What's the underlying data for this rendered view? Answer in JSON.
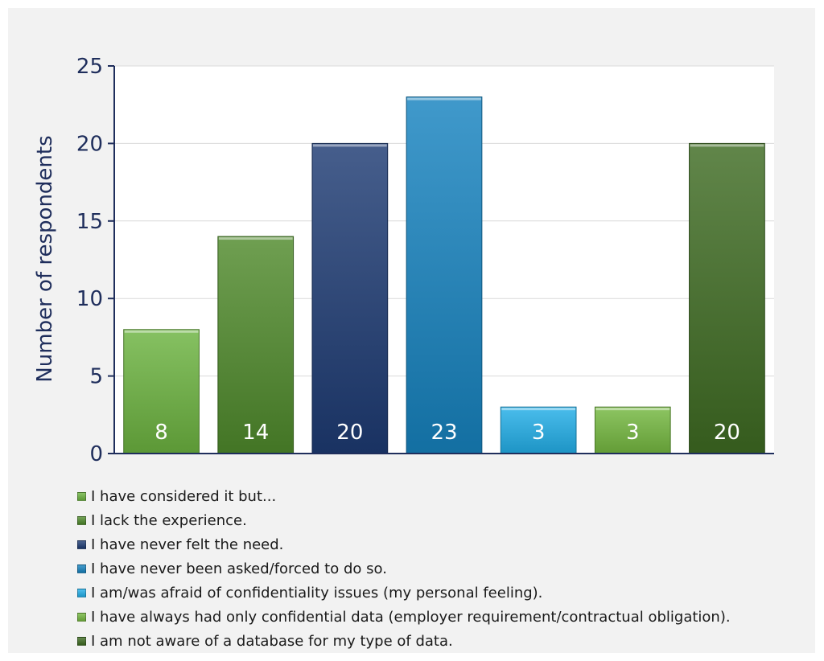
{
  "chart_data": {
    "type": "bar",
    "ylabel": "Number of respondents",
    "ylim": [
      0,
      25
    ],
    "yticks": [
      0,
      5,
      10,
      15,
      20,
      25
    ],
    "grid": true,
    "legend_position": "bottom",
    "categories": [
      "I have considered it but...",
      "I lack the experience.",
      "I have never felt the need.",
      "I have never been asked/forced to do so.",
      "I am/was afraid of confidentiality issues (my personal feeling).",
      "I have always had only confidential data (employer requirement/contractual obligation).",
      "I am not aware of a database for my type of data."
    ],
    "values": [
      8,
      14,
      20,
      23,
      3,
      3,
      20
    ],
    "data_labels": [
      "8",
      "14",
      "20",
      "23",
      "3",
      "3",
      "20"
    ],
    "colors": [
      "#6cb33f",
      "#4f8a2b",
      "#1d3b73",
      "#1683bf",
      "#22aee8",
      "#74b83f",
      "#3e6b22"
    ]
  }
}
